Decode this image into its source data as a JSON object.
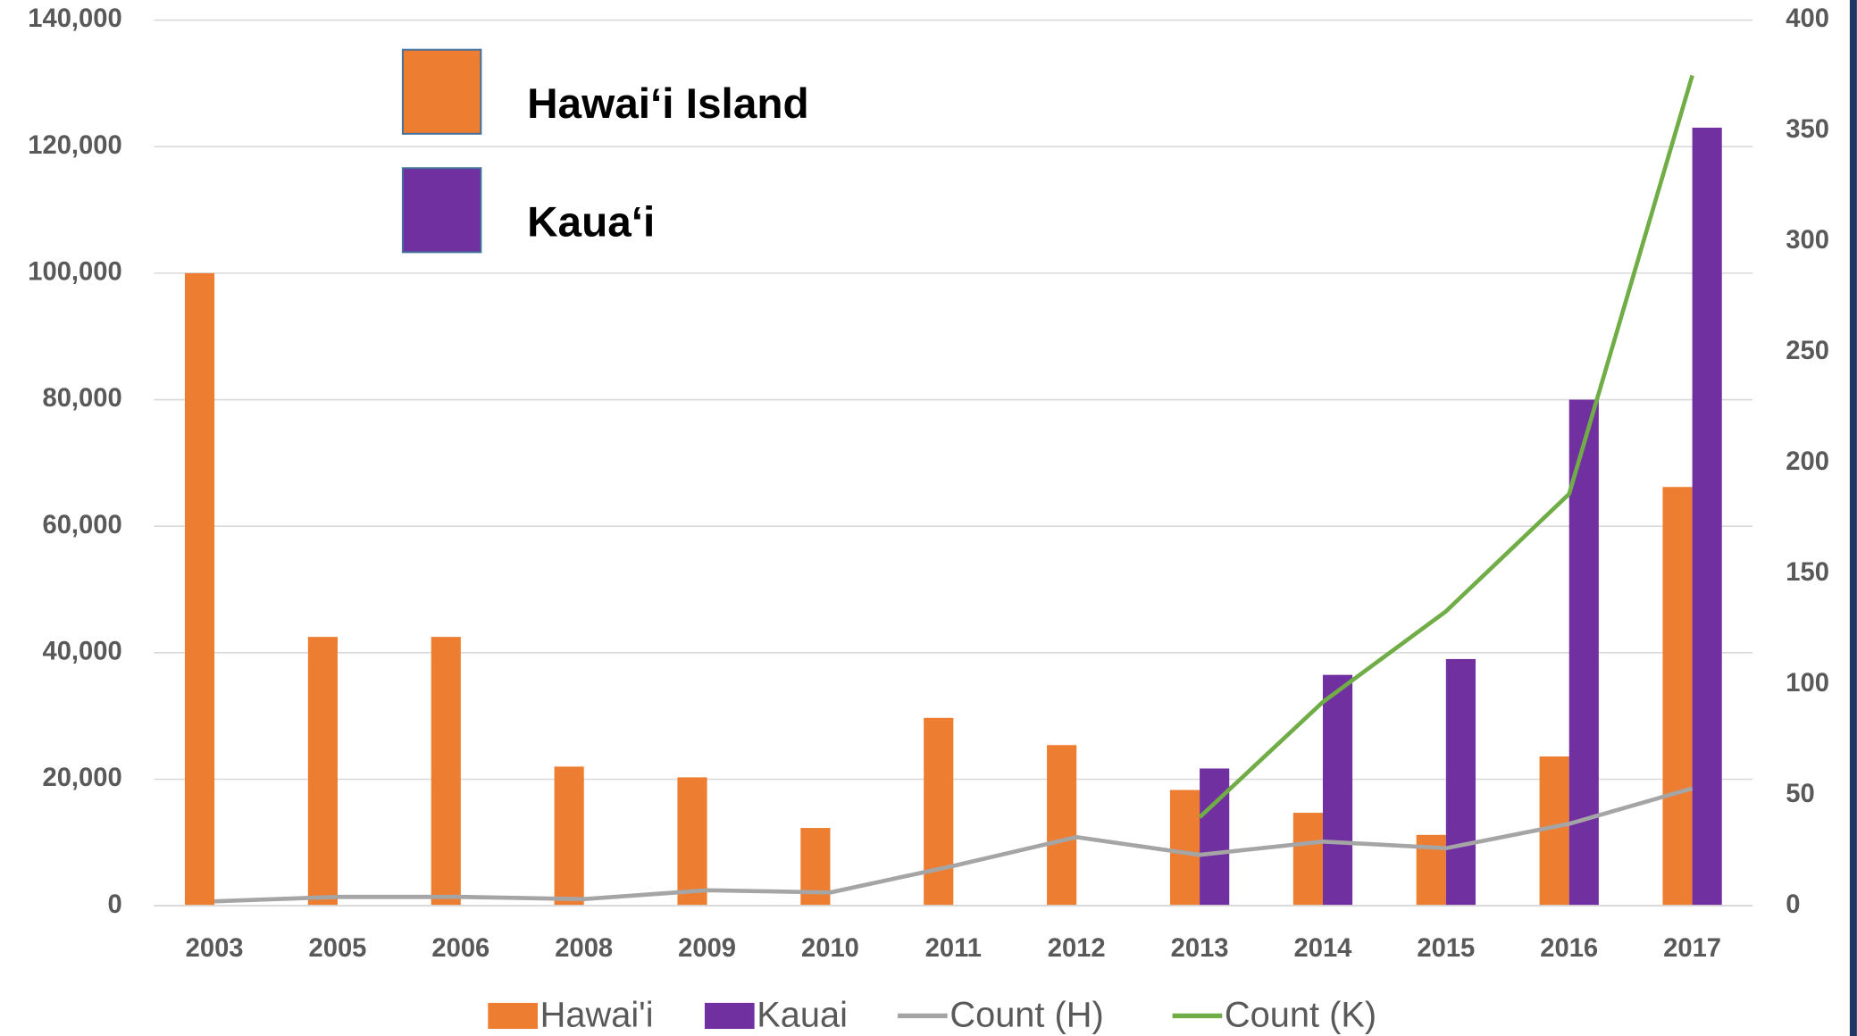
{
  "chart_data": {
    "type": "bar",
    "categories": [
      "2003",
      "2005",
      "2006",
      "2008",
      "2009",
      "2010",
      "2011",
      "2012",
      "2013",
      "2014",
      "2015",
      "2016",
      "2017"
    ],
    "series": [
      {
        "name": "Hawai'i",
        "color": "#ed7d31",
        "values": [
          100000,
          42500,
          42500,
          22000,
          20300,
          12300,
          29700,
          25400,
          18300,
          14700,
          11200,
          23600,
          66200
        ]
      },
      {
        "name": "Kauai",
        "color": "#7030a0",
        "values": [
          null,
          null,
          null,
          null,
          null,
          null,
          null,
          null,
          21700,
          36500,
          39000,
          80000,
          123000
        ]
      },
      {
        "name": "Count (H)",
        "type": "line",
        "axis": "y2",
        "color": "#a5a5a5",
        "values": [
          2,
          4,
          4,
          3,
          7,
          6,
          18,
          31,
          23,
          29,
          26,
          37,
          53
        ]
      },
      {
        "name": "Count (K)",
        "type": "line",
        "axis": "y2",
        "color": "#70ad47",
        "values": [
          null,
          null,
          null,
          null,
          null,
          null,
          null,
          null,
          40,
          92,
          133,
          186,
          375
        ]
      }
    ],
    "ylim": [
      0,
      140000
    ],
    "yticks": [
      0,
      {
        "value": 20000,
        "label": "20,000"
      },
      {
        "value": 40000,
        "label": "40,000"
      },
      {
        "value": 60000,
        "label": "60,000"
      },
      {
        "value": 80000,
        "label": "80,000"
      },
      {
        "value": 100000,
        "label": "100,000"
      },
      {
        "value": 120000,
        "label": "120,000"
      },
      {
        "value": 140000,
        "label": "140,000"
      }
    ],
    "y2lim": [
      0,
      400
    ],
    "y2ticks": [
      0,
      50,
      100,
      150,
      200,
      250,
      300,
      350,
      400
    ],
    "grid": true,
    "legend": "bottom",
    "inset_legend": [
      {
        "label": "Hawai‘i Island",
        "color": "#ed7d31"
      },
      {
        "label": "Kaua‘i",
        "color": "#7030a0"
      }
    ]
  }
}
